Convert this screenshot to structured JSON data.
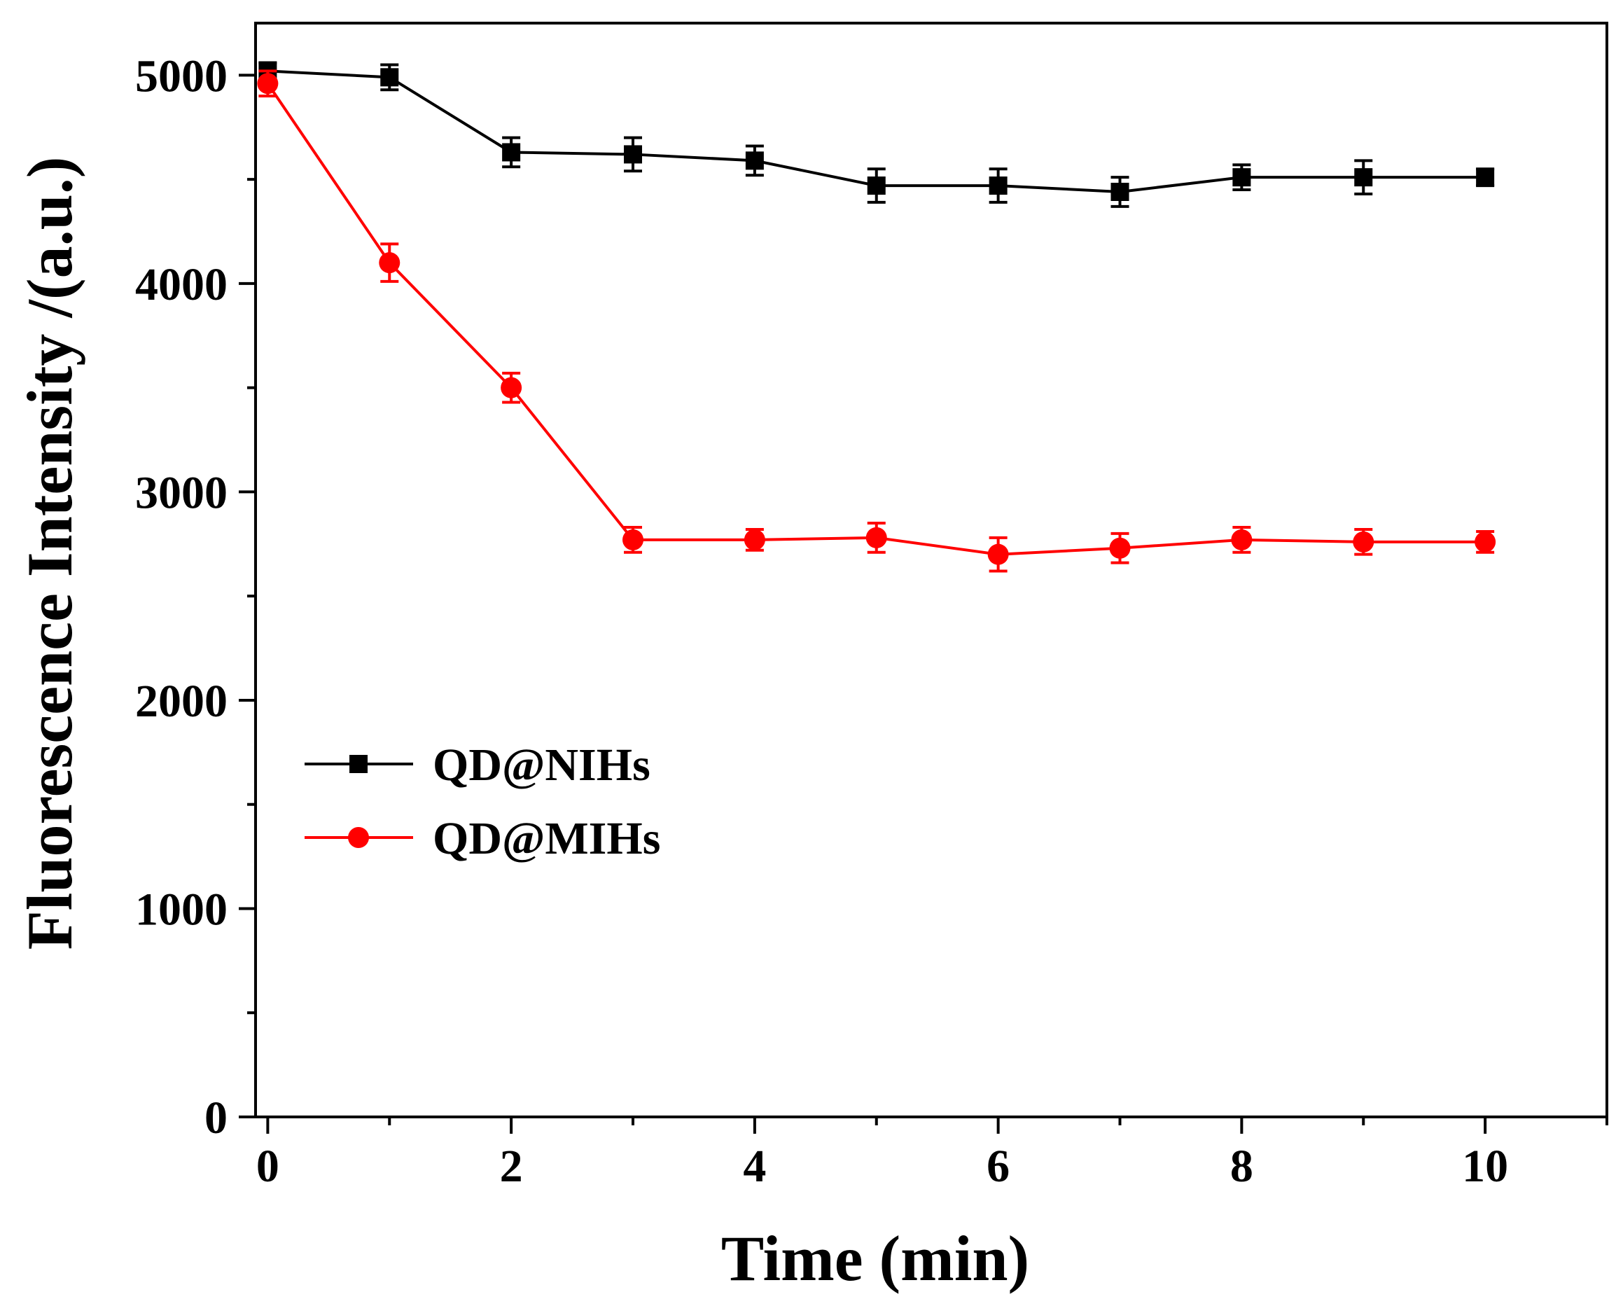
{
  "chart_data": {
    "type": "line",
    "title": "",
    "xlabel": "Time (min)",
    "ylabel": "Fluorescence  Intensity /(a.u.)",
    "xlim": [
      -0.1,
      11
    ],
    "ylim": [
      0,
      5250
    ],
    "x_ticks": [
      0,
      2,
      4,
      6,
      8,
      10
    ],
    "x_tick_labels": [
      "0",
      "2",
      "4",
      "6",
      "8",
      "10"
    ],
    "x_minor_ticks": [
      1,
      3,
      5,
      7,
      9,
      11
    ],
    "y_ticks": [
      0,
      1000,
      2000,
      3000,
      4000,
      5000
    ],
    "y_tick_labels": [
      "0",
      "1000",
      "2000",
      "3000",
      "4000",
      "5000"
    ],
    "y_minor_ticks": [
      500,
      1500,
      2500,
      3500,
      4500
    ],
    "grid": false,
    "legend_position": "center-left",
    "x": [
      0,
      1,
      2,
      3,
      4,
      5,
      6,
      7,
      8,
      9,
      10
    ],
    "series": [
      {
        "name": "QD@NIHs",
        "color": "#000000",
        "marker": "square",
        "values": [
          5020,
          4990,
          4630,
          4620,
          4590,
          4470,
          4470,
          4440,
          4510,
          4510,
          4510
        ],
        "errors": [
          40,
          60,
          70,
          80,
          70,
          80,
          80,
          70,
          60,
          80,
          40
        ]
      },
      {
        "name": "QD@MIHs",
        "color": "#ff0000",
        "marker": "circle",
        "values": [
          4960,
          4100,
          3500,
          2770,
          2770,
          2780,
          2700,
          2730,
          2770,
          2760,
          2760
        ],
        "errors": [
          60,
          90,
          70,
          60,
          50,
          70,
          80,
          70,
          60,
          60,
          50
        ]
      }
    ]
  }
}
